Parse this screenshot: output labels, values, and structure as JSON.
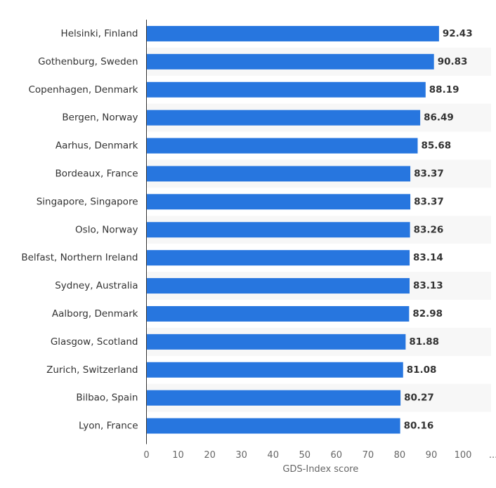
{
  "chart_data": {
    "type": "bar",
    "orientation": "horizontal",
    "categories": [
      "Helsinki, Finland",
      "Gothenburg, Sweden",
      "Copenhagen, Denmark",
      "Bergen, Norway",
      "Aarhus, Denmark",
      "Bordeaux, France",
      "Singapore, Singapore",
      "Oslo, Norway",
      "Belfast, Northern Ireland",
      "Sydney, Australia",
      "Aalborg, Denmark",
      "Glasgow, Scotland",
      "Zurich, Switzerland",
      "Bilbao, Spain",
      "Lyon, France"
    ],
    "values": [
      92.43,
      90.83,
      88.19,
      86.49,
      85.68,
      83.37,
      83.37,
      83.26,
      83.14,
      83.13,
      82.98,
      81.88,
      81.08,
      80.27,
      80.16
    ],
    "value_labels": [
      "92.43",
      "90.83",
      "88.19",
      "86.49",
      "85.68",
      "83.37",
      "83.37",
      "83.26",
      "83.14",
      "83.13",
      "82.98",
      "81.88",
      "81.08",
      "80.27",
      "80.16"
    ],
    "xlabel": "GDS-Index score",
    "ylabel": "",
    "xlim": [
      0,
      110
    ],
    "x_ticks": [
      0,
      10,
      20,
      30,
      40,
      50,
      60,
      70,
      80,
      90,
      100
    ],
    "x_tick_labels": [
      "0",
      "10",
      "20",
      "30",
      "40",
      "50",
      "60",
      "70",
      "80",
      "90",
      "100"
    ],
    "overflow_tick_label": "...",
    "grid": false,
    "alternating_row_bands": true,
    "colors": {
      "bar": "#2776df",
      "row_band": "#f7f7f7",
      "axis": "#333333",
      "text": "#333333",
      "tick_text": "#666666"
    }
  }
}
